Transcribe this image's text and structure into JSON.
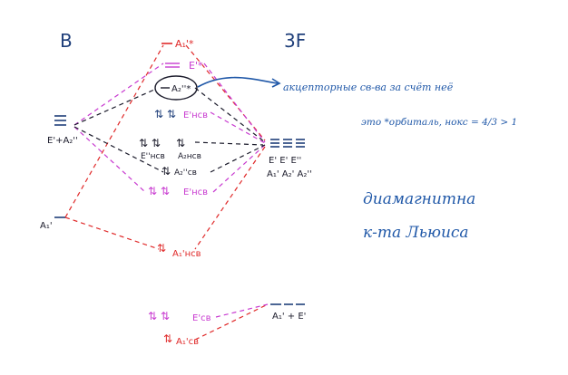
{
  "left_atom": {
    "label": "B",
    "levels": {
      "e_a2": "E'+A₂''",
      "a1": "A₁'"
    }
  },
  "right_group": {
    "label": "3F",
    "levels": {
      "top_labels": "E' E' E''",
      "bottom_labels": "A₁' A₂' A₂''",
      "low": "A₁' + E'"
    }
  },
  "mo": {
    "a1_star": "A₁'*",
    "e_star": "E'*",
    "a2_double": "A₂''*",
    "e_nonbond_top": "E'нсв",
    "e2_nonbond": "E''нсв",
    "a2_nonbond": "A₂нсв",
    "a2_bond": "A₂''св",
    "e_nonbond_low": "E'нсв",
    "a1_nonbond": "A₁'нсв",
    "e_bond": "E'св",
    "a1_bond": "A₁'св"
  },
  "notes": {
    "acceptor": "акцепторные св-ва за счёт неё",
    "orbital": "это *орбиталь, нокс = 4/3 > 1",
    "diamagnetic": "диамагнитна",
    "lewis": "к-та Льюиса"
  },
  "colors": {
    "red": "#e02a2a",
    "pink": "#c83ad0",
    "dark": "#1a1a2a",
    "blue": "#2058a8",
    "navy": "#1f3f7a"
  }
}
